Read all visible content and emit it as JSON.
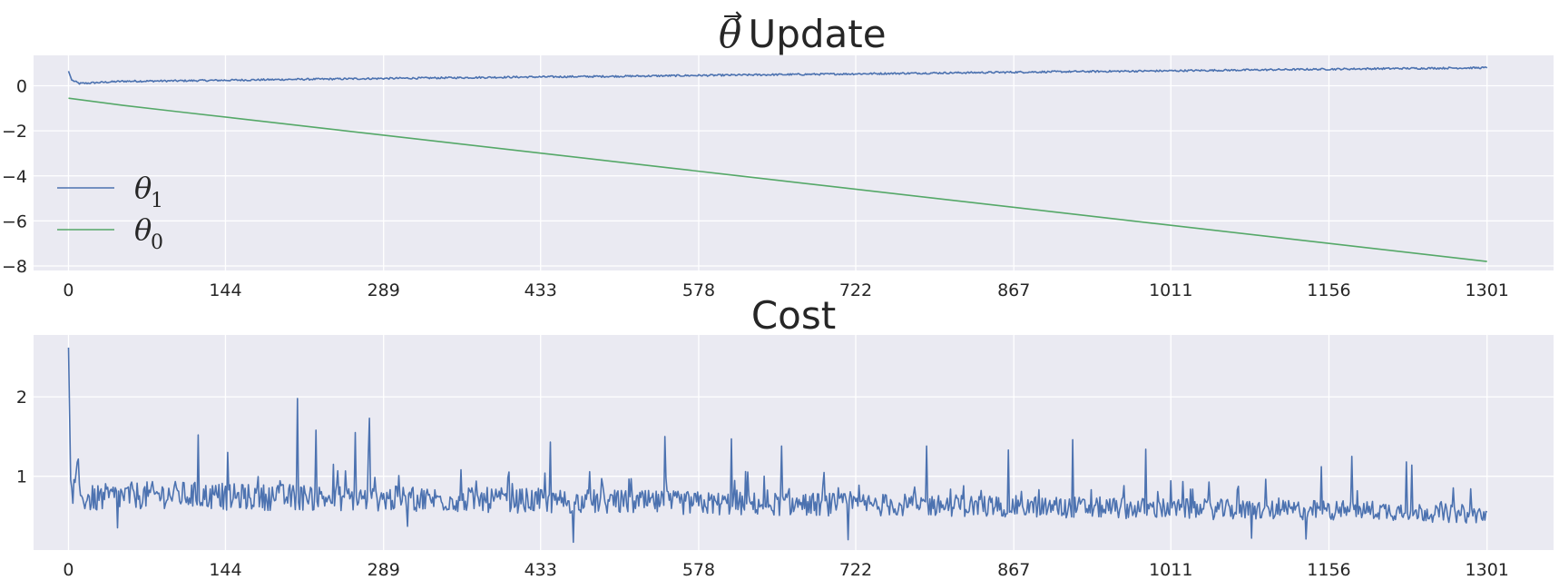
{
  "chart_data": [
    {
      "type": "line",
      "title": "Update",
      "title_symbol": "θ",
      "title_arrow": "→",
      "xlabel": "",
      "ylabel": "",
      "x_ticks": [
        "0",
        "144",
        "289",
        "433",
        "578",
        "722",
        "867",
        "1011",
        "1156",
        "1301"
      ],
      "y_ticks": [
        "0",
        "−2",
        "−4",
        "−6",
        "−8"
      ],
      "xlim": [
        -32,
        1362
      ],
      "ylim": [
        -8.2,
        1.35
      ],
      "grid": true,
      "legend_placement": "center-left",
      "legend": [
        {
          "symbol": "θ",
          "sub": "1"
        },
        {
          "symbol": "θ",
          "sub": "0"
        }
      ],
      "series": [
        {
          "key": "theta1",
          "color": "#4c72b0",
          "x": [
            0,
            3,
            10,
            50,
            100,
            200,
            300,
            400,
            500,
            600,
            700,
            800,
            900,
            1000,
            1100,
            1200,
            1301
          ],
          "y": [
            0.65,
            0.25,
            0.1,
            0.2,
            0.22,
            0.28,
            0.33,
            0.38,
            0.42,
            0.47,
            0.52,
            0.57,
            0.62,
            0.66,
            0.71,
            0.76,
            0.8
          ],
          "noise": 0.08
        },
        {
          "key": "theta0",
          "color": "#55a868",
          "x": [
            0,
            5,
            1301
          ],
          "y": [
            -0.55,
            -0.62,
            -7.8
          ],
          "noise": 0
        }
      ]
    },
    {
      "type": "line",
      "title": "Cost",
      "xlabel": "",
      "ylabel": "",
      "x_ticks": [
        "0",
        "144",
        "289",
        "433",
        "578",
        "722",
        "867",
        "1011",
        "1156",
        "1301"
      ],
      "y_ticks": [
        "1",
        "2"
      ],
      "xlim": [
        -32,
        1362
      ],
      "ylim": [
        0.07,
        2.78
      ],
      "grid": true,
      "series": [
        {
          "key": "cost",
          "color": "#4c72b0",
          "x": [
            0,
            2,
            4,
            8,
            12,
            20,
            40,
            60,
            100,
            150,
            200,
            300,
            400,
            500,
            600,
            700,
            800,
            900,
            1000,
            1100,
            1200,
            1301
          ],
          "y": [
            2.62,
            0.95,
            0.75,
            0.9,
            0.72,
            0.7,
            0.72,
            0.74,
            0.75,
            0.72,
            0.72,
            0.7,
            0.68,
            0.66,
            0.64,
            0.63,
            0.62,
            0.6,
            0.58,
            0.56,
            0.56,
            0.5
          ],
          "noise": 0.16,
          "spikes": [
            [
              119,
              1.52
            ],
            [
              146,
              1.3
            ],
            [
              210,
              1.98
            ],
            [
              227,
              1.58
            ],
            [
              263,
              1.55
            ],
            [
              275,
              1.28
            ],
            [
              276,
              1.73
            ],
            [
              442,
              1.43
            ],
            [
              547,
              1.5
            ],
            [
              608,
              1.47
            ],
            [
              654,
              1.38
            ],
            [
              787,
              1.38
            ],
            [
              862,
              1.33
            ],
            [
              921,
              1.46
            ],
            [
              988,
              1.34
            ],
            [
              1149,
              1.12
            ],
            [
              1177,
              1.25
            ],
            [
              1227,
              1.18
            ],
            [
              1232,
              1.14
            ],
            [
              463,
              0.17
            ],
            [
              715,
              0.2
            ],
            [
              1085,
              0.22
            ],
            [
              1135,
              0.21
            ],
            [
              45,
              0.35
            ],
            [
              311,
              0.37
            ]
          ]
        }
      ]
    }
  ]
}
